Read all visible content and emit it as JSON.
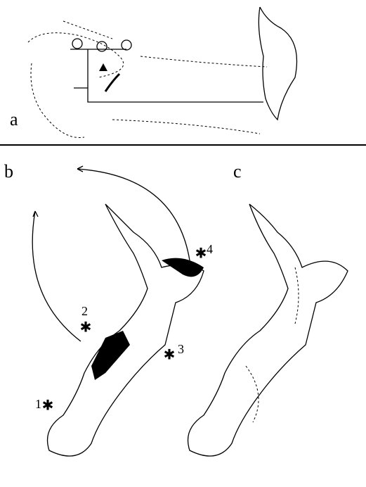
{
  "panels": [
    {
      "label": "a"
    },
    {
      "label": "b"
    },
    {
      "label": "c"
    }
  ],
  "sites": [
    {
      "label": "1"
    },
    {
      "label": "2"
    },
    {
      "label": "3"
    },
    {
      "label": "4"
    }
  ]
}
